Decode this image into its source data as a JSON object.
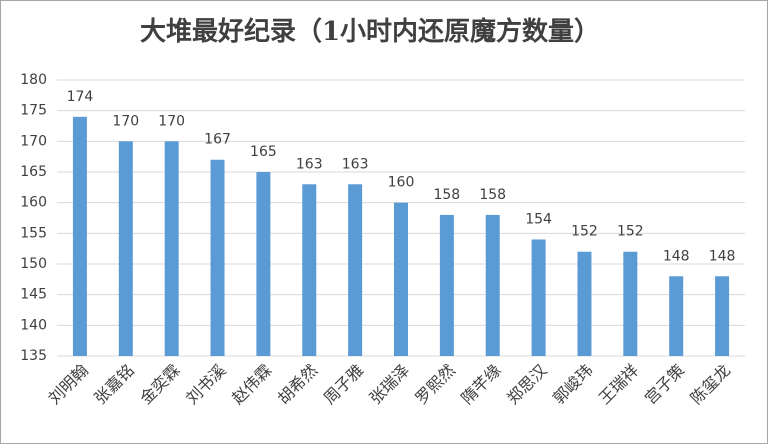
{
  "chart_data": {
    "type": "bar",
    "title": "大堆最好纪录（1小时内还原魔方数量）",
    "categories": [
      "刘明翰",
      "张嘉铭",
      "金奕霖",
      "刘书溪",
      "赵伟霖",
      "胡希然",
      "周子雅",
      "张瑞泽",
      "罗熙然",
      "隋芊缘",
      "郑思汉",
      "郭峻玮",
      "王瑞祥",
      "宫子策",
      "陈玺龙"
    ],
    "values": [
      174,
      170,
      170,
      167,
      165,
      163,
      163,
      160,
      158,
      158,
      154,
      152,
      152,
      148,
      148
    ],
    "color": "#5b9bd5",
    "ylim": [
      135,
      180
    ],
    "yticks": [
      135,
      140,
      145,
      150,
      155,
      160,
      165,
      170,
      175,
      180
    ],
    "grid": true
  }
}
